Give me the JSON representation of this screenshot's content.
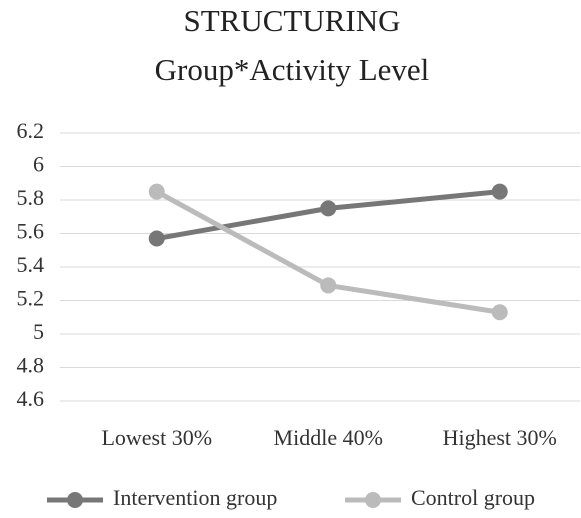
{
  "chart_data": {
    "type": "line",
    "title": "STRUCTURING",
    "subtitle": "Group*Activity Level",
    "categories": [
      "Lowest 30%",
      "Middle 40%",
      "Highest 30%"
    ],
    "series": [
      {
        "name": "Intervention group",
        "color": "#777777",
        "values": [
          5.57,
          5.75,
          5.85
        ]
      },
      {
        "name": "Control group",
        "color": "#bbbbbb",
        "values": [
          5.85,
          5.29,
          5.13
        ]
      }
    ],
    "ylim": [
      4.6,
      6.2
    ],
    "yticks": [
      4.6,
      4.8,
      5,
      5.2,
      5.4,
      5.6,
      5.8,
      6,
      6.2
    ],
    "grid": true,
    "legend": "bottom"
  }
}
